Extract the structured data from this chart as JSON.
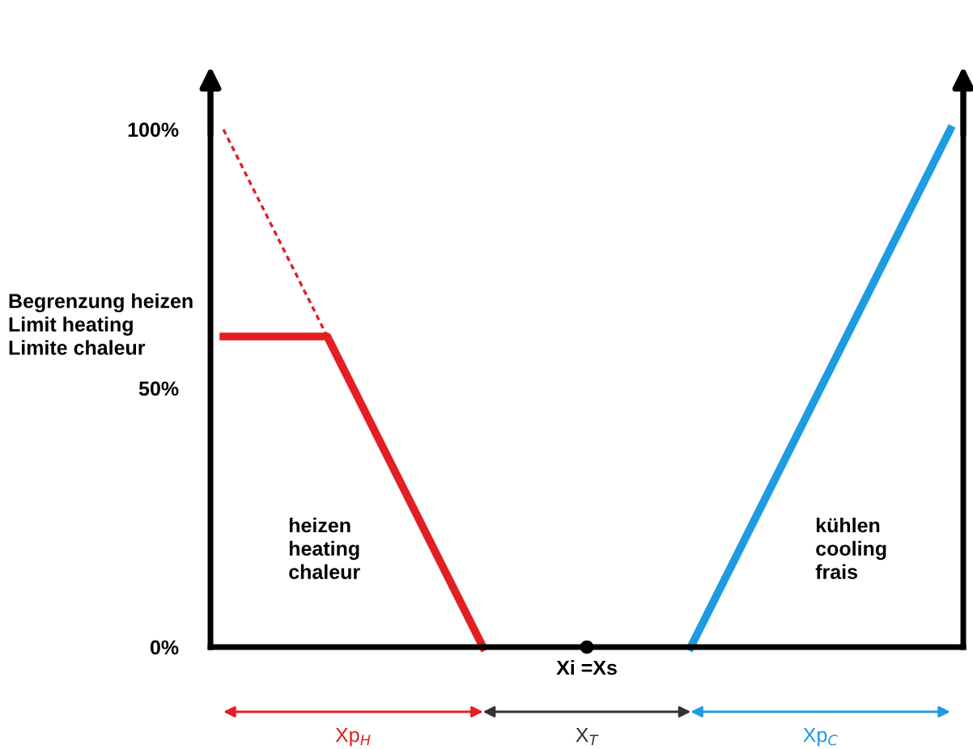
{
  "chart_data": {
    "type": "line",
    "categories": [
      null,
      null,
      null,
      null,
      null,
      null,
      null,
      null,
      null,
      null,
      null,
      null,
      null,
      null,
      null,
      null,
      null,
      null,
      null,
      null,
      null,
      null,
      null,
      null,
      null,
      null,
      null,
      null,
      null
    ],
    "series": [
      {
        "name": "heizen\nheating\nchaleur",
        "color": "#e31e24",
        "values": [
          60,
          60,
          60,
          60,
          60,
          50,
          40,
          30,
          20,
          10,
          0,
          null,
          null,
          null,
          null,
          null,
          null,
          null,
          null,
          null,
          null,
          null,
          null,
          null,
          null,
          null,
          null,
          null,
          null
        ]
      },
      {
        "color": "#e31e24",
        "line_style": "dashed",
        "values": [
          100,
          90,
          80,
          70,
          60,
          null,
          null,
          null,
          null,
          null,
          null,
          null,
          null,
          null,
          null,
          null,
          null,
          null,
          null,
          null,
          null,
          null,
          null,
          null,
          null,
          null,
          null,
          null,
          null
        ]
      },
      {
        "name": "kühlen\ncooling\nfrais",
        "color": "#1e9be2",
        "values": [
          null,
          null,
          null,
          null,
          null,
          null,
          null,
          null,
          null,
          null,
          null,
          null,
          null,
          null,
          null,
          null,
          null,
          null,
          0,
          10,
          20,
          30,
          40,
          50,
          60,
          70,
          80,
          90,
          100
        ]
      }
    ],
    "ylim": [
      0,
      110
    ],
    "yticks": [
      {
        "value": 0,
        "label": "0%"
      },
      {
        "value": 50,
        "label": "50%"
      },
      {
        "value": 100,
        "label": "100%"
      }
    ],
    "marker": "none",
    "grid": false,
    "annotations": [
      "Begrenzung heizen\nLimit heating\nLimite chaleur",
      "Xi =Xs",
      "Xp$_{H}$",
      "X$_{T}$",
      "Xp$_{C}$"
    ]
  }
}
